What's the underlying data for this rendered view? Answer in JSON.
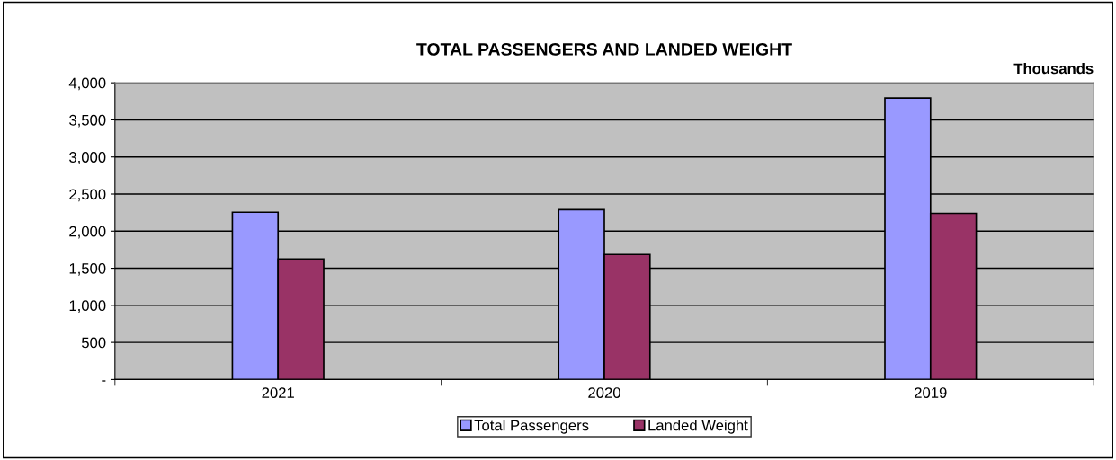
{
  "chart_data": {
    "type": "bar",
    "title": "TOTAL PASSENGERS AND LANDED WEIGHT",
    "annotations": [
      "Thousands"
    ],
    "categories": [
      "2021",
      "2020",
      "2019"
    ],
    "series": [
      {
        "name": "Total Passengers",
        "color": "#9999ff",
        "values": [
          2255,
          2290,
          3795
        ]
      },
      {
        "name": "Landed Weight",
        "color": "#993366",
        "values": [
          1625,
          1685,
          2240
        ]
      }
    ],
    "ylim": [
      0,
      4000
    ],
    "yticks": [
      {
        "value": 0,
        "label": "-"
      },
      {
        "value": 500,
        "label": "500"
      },
      {
        "value": 1000,
        "label": "1,000"
      },
      {
        "value": 1500,
        "label": "1,500"
      },
      {
        "value": 2000,
        "label": "2,000"
      },
      {
        "value": 2500,
        "label": "2,500"
      },
      {
        "value": 3000,
        "label": "3,000"
      },
      {
        "value": 3500,
        "label": "3,500"
      },
      {
        "value": 4000,
        "label": "4,000"
      }
    ],
    "grid": "y",
    "legend": "bottom"
  }
}
